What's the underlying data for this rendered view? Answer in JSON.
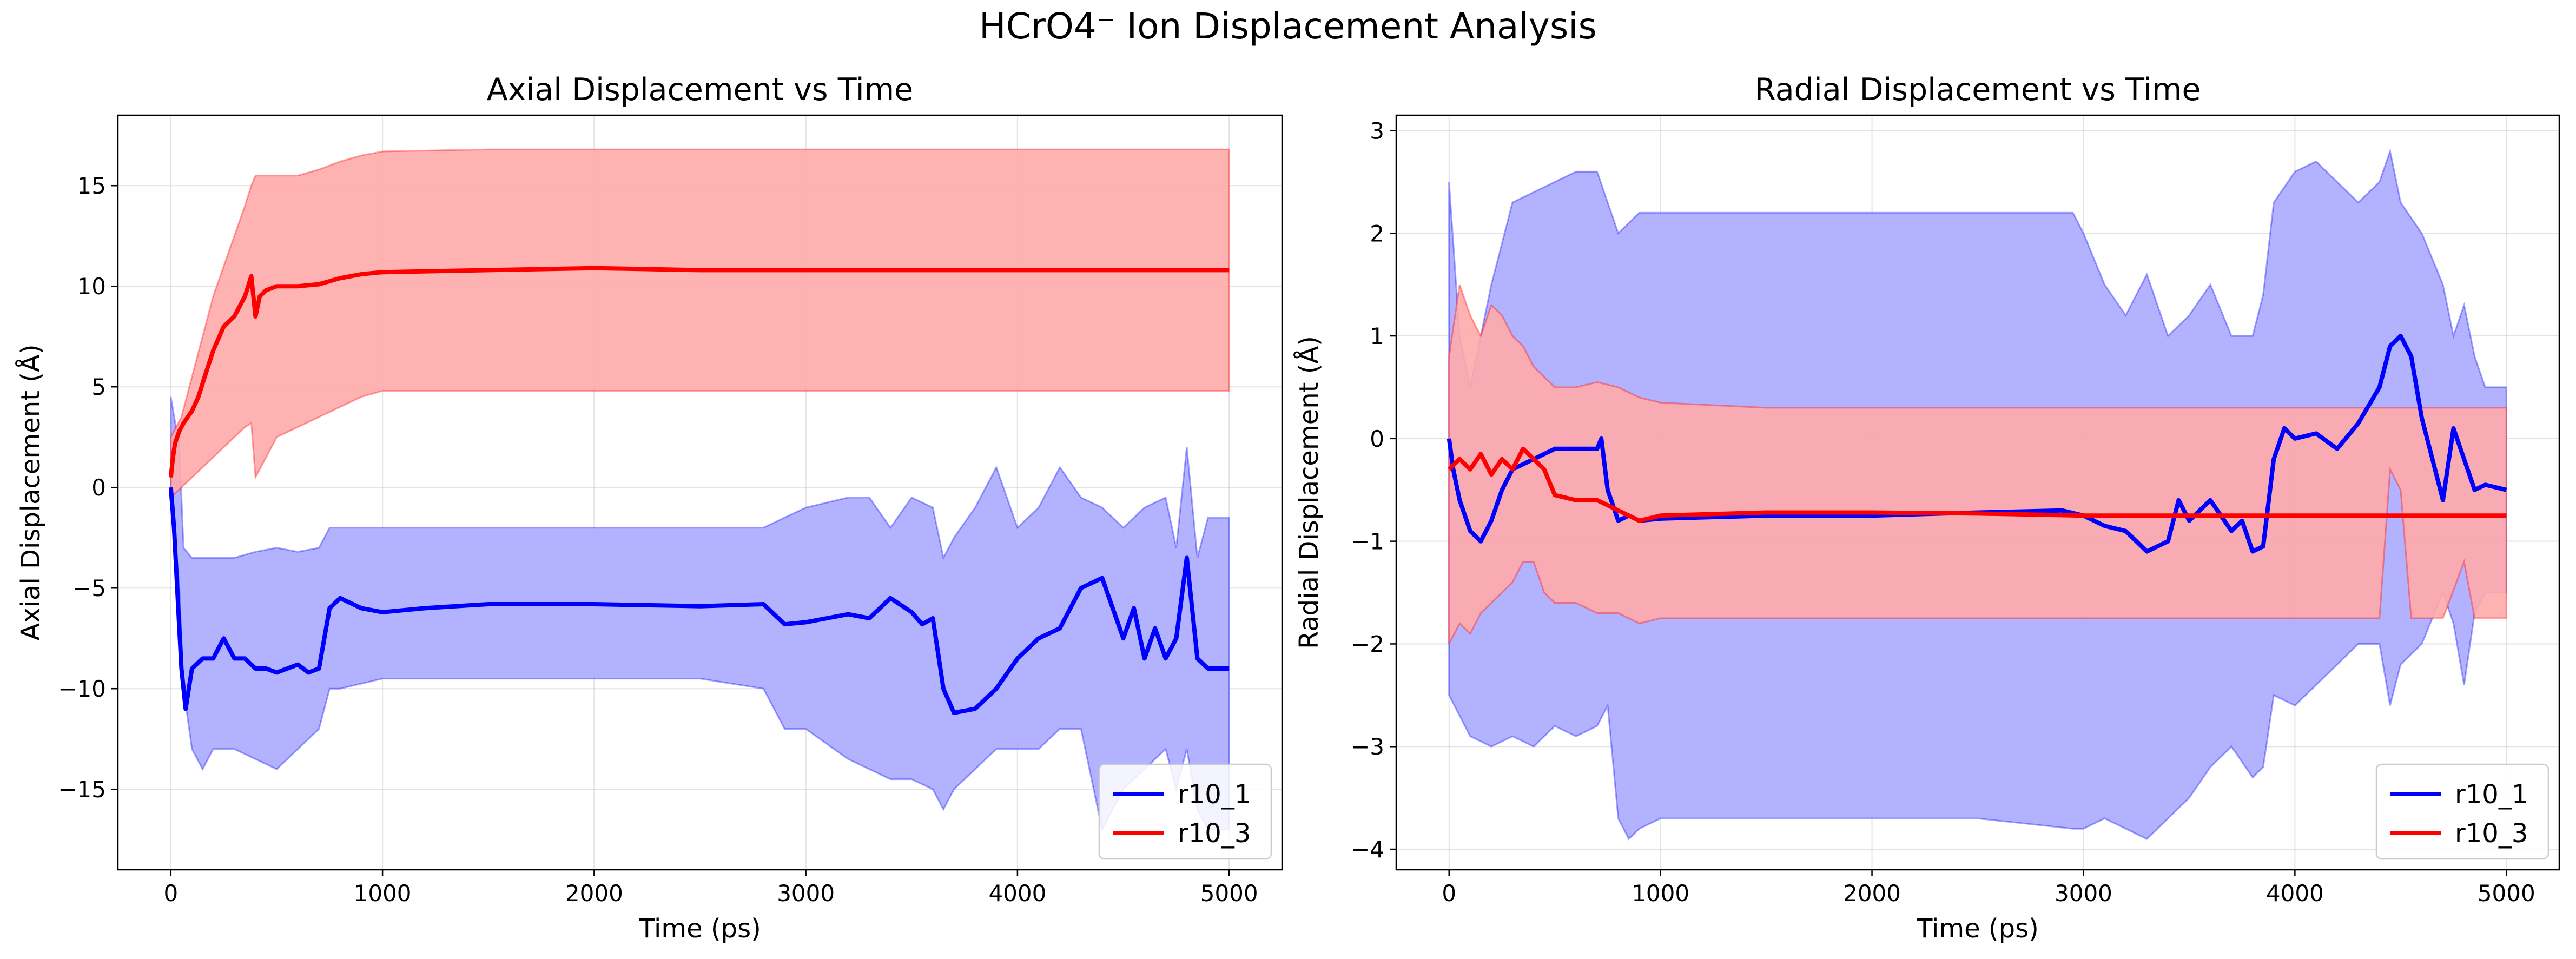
{
  "figure": {
    "title": "HCrO4⁻ Ion Displacement Analysis"
  },
  "colors": {
    "r10_1": "#0000ff",
    "r10_3": "#ff0000",
    "band_r10_1": "#aaaaff",
    "band_r10_3": "#ffaaaa"
  },
  "chart_data": [
    {
      "type": "line",
      "title": "Axial Displacement vs Time",
      "xlabel": "Time (ps)",
      "ylabel": "Axial Displacement (Å)",
      "xlim": [
        -250,
        5250
      ],
      "ylim": [
        -19,
        18.5
      ],
      "xticks": [
        0,
        1000,
        2000,
        3000,
        4000,
        5000
      ],
      "yticks": [
        -15,
        -10,
        -5,
        0,
        5,
        10,
        15
      ],
      "grid": true,
      "legend_position": "lower-right",
      "series": [
        {
          "name": "r10_1",
          "color": "#0000ff",
          "x": [
            0,
            15,
            30,
            50,
            70,
            100,
            150,
            200,
            250,
            300,
            350,
            400,
            450,
            500,
            550,
            600,
            650,
            700,
            750,
            800,
            900,
            1000,
            1200,
            1500,
            2000,
            2500,
            2800,
            2900,
            3000,
            3100,
            3200,
            3300,
            3400,
            3500,
            3550,
            3600,
            3650,
            3700,
            3800,
            3900,
            4000,
            4100,
            4200,
            4300,
            4400,
            4500,
            4550,
            4600,
            4650,
            4700,
            4750,
            4800,
            4850,
            4900,
            5000
          ],
          "values": [
            0,
            -2,
            -5,
            -9,
            -11,
            -9,
            -8.5,
            -8.5,
            -7.5,
            -8.5,
            -8.5,
            -9,
            -9,
            -9.2,
            -9,
            -8.8,
            -9.2,
            -9,
            -6,
            -5.5,
            -6,
            -6.2,
            -6,
            -5.8,
            -5.8,
            -5.9,
            -5.8,
            -6.8,
            -6.7,
            -6.5,
            -6.3,
            -6.5,
            -5.5,
            -6.2,
            -6.8,
            -6.5,
            -10,
            -11.2,
            -11,
            -10,
            -8.5,
            -7.5,
            -7,
            -5,
            -4.5,
            -7.5,
            -6,
            -8.5,
            -7,
            -8.5,
            -7.5,
            -3.5,
            -8.5,
            -9,
            -9
          ]
        },
        {
          "name": "r10_3",
          "color": "#ff0000",
          "x": [
            0,
            10,
            20,
            40,
            60,
            80,
            100,
            130,
            160,
            200,
            250,
            300,
            350,
            380,
            400,
            420,
            450,
            500,
            600,
            700,
            800,
            900,
            1000,
            1500,
            2000,
            2500,
            3000,
            3500,
            4000,
            4500,
            5000
          ],
          "values": [
            0.5,
            1.5,
            2.2,
            2.8,
            3.2,
            3.5,
            3.8,
            4.5,
            5.5,
            6.8,
            8,
            8.5,
            9.5,
            10.5,
            8.5,
            9.5,
            9.8,
            10.0,
            10.0,
            10.1,
            10.4,
            10.6,
            10.7,
            10.8,
            10.9,
            10.8,
            10.8,
            10.8,
            10.8,
            10.8,
            10.8
          ]
        }
      ],
      "bands": [
        {
          "series": "r10_1",
          "x": [
            0,
            40,
            60,
            100,
            150,
            200,
            300,
            400,
            500,
            600,
            700,
            750,
            800,
            1000,
            1500,
            2000,
            2500,
            2800,
            2900,
            3000,
            3200,
            3300,
            3400,
            3500,
            3600,
            3650,
            3700,
            3800,
            3900,
            4000,
            4100,
            4200,
            4300,
            4400,
            4500,
            4600,
            4700,
            4750,
            4800,
            4850,
            4900,
            5000
          ],
          "upper": [
            4.5,
            2,
            -3,
            -3.5,
            -3.5,
            -3.5,
            -3.5,
            -3.2,
            -3,
            -3.2,
            -3,
            -2,
            -2,
            -2,
            -2,
            -2,
            -2,
            -2,
            -1.5,
            -1,
            -0.5,
            -0.5,
            -2,
            -0.5,
            -1,
            -3.5,
            -2.5,
            -1,
            1,
            -2,
            -1,
            1,
            -0.5,
            -1,
            -2,
            -1,
            -0.5,
            -3,
            2,
            -3.5,
            -1.5,
            -1.5
          ],
          "lower": [
            0,
            -5,
            -10,
            -13,
            -14,
            -13,
            -13,
            -13.5,
            -14,
            -13,
            -12,
            -10,
            -10,
            -9.5,
            -9.5,
            -9.5,
            -9.5,
            -10,
            -12,
            -12,
            -13.5,
            -14,
            -14.5,
            -14.5,
            -15,
            -16,
            -15,
            -14,
            -13,
            -13,
            -13,
            -12,
            -12,
            -17,
            -15,
            -14,
            -13,
            -15,
            -13,
            -16,
            -17,
            -17
          ]
        },
        {
          "series": "r10_3",
          "x": [
            0,
            50,
            100,
            150,
            200,
            250,
            300,
            350,
            380,
            400,
            450,
            500,
            600,
            700,
            800,
            900,
            1000,
            1500,
            2000,
            2500,
            3000,
            3500,
            4000,
            4500,
            5000
          ],
          "upper": [
            2.5,
            3.5,
            5.5,
            7.5,
            9.5,
            11,
            12.5,
            14,
            15,
            15.5,
            15.5,
            15.5,
            15.5,
            15.8,
            16.2,
            16.5,
            16.7,
            16.8,
            16.8,
            16.8,
            16.8,
            16.8,
            16.8,
            16.8,
            16.8
          ],
          "lower": [
            -0.5,
            0,
            0.5,
            1,
            1.5,
            2,
            2.5,
            3.0,
            3.2,
            0.5,
            1.5,
            2.5,
            3.0,
            3.5,
            4.0,
            4.5,
            4.8,
            4.8,
            4.8,
            4.8,
            4.8,
            4.8,
            4.8,
            4.8,
            4.8
          ]
        }
      ]
    },
    {
      "type": "line",
      "title": "Radial Displacement vs Time",
      "xlabel": "Time (ps)",
      "ylabel": "Radial Displacement (Å)",
      "xlim": [
        -250,
        5250
      ],
      "ylim": [
        -4.2,
        3.15
      ],
      "xticks": [
        0,
        1000,
        2000,
        3000,
        4000,
        5000
      ],
      "yticks": [
        -4,
        -3,
        -2,
        -1,
        0,
        1,
        2,
        3
      ],
      "grid": true,
      "legend_position": "lower-right",
      "series": [
        {
          "name": "r10_1",
          "color": "#0000ff",
          "x": [
            0,
            20,
            50,
            100,
            150,
            200,
            250,
            300,
            400,
            500,
            600,
            700,
            720,
            750,
            800,
            850,
            900,
            1000,
            1500,
            2000,
            2500,
            2900,
            3000,
            3100,
            3200,
            3300,
            3400,
            3450,
            3500,
            3600,
            3700,
            3750,
            3800,
            3850,
            3900,
            3950,
            4000,
            4100,
            4200,
            4300,
            4400,
            4450,
            4500,
            4550,
            4600,
            4650,
            4700,
            4750,
            4800,
            4850,
            4900,
            5000
          ],
          "values": [
            0,
            -0.3,
            -0.6,
            -0.9,
            -1.0,
            -0.8,
            -0.5,
            -0.3,
            -0.2,
            -0.1,
            -0.1,
            -0.1,
            0,
            -0.5,
            -0.8,
            -0.75,
            -0.8,
            -0.78,
            -0.75,
            -0.75,
            -0.72,
            -0.7,
            -0.75,
            -0.85,
            -0.9,
            -1.1,
            -1.0,
            -0.6,
            -0.8,
            -0.6,
            -0.9,
            -0.8,
            -1.1,
            -1.05,
            -0.2,
            0.1,
            0.0,
            0.05,
            -0.1,
            0.15,
            0.5,
            0.9,
            1.0,
            0.8,
            0.2,
            -0.2,
            -0.6,
            0.1,
            -0.2,
            -0.5,
            -0.45,
            -0.5
          ]
        },
        {
          "name": "r10_3",
          "color": "#ff0000",
          "x": [
            0,
            50,
            100,
            150,
            200,
            250,
            300,
            350,
            400,
            450,
            500,
            600,
            700,
            800,
            900,
            1000,
            1500,
            2000,
            2500,
            3000,
            3500,
            4000,
            4500,
            5000
          ],
          "values": [
            -0.3,
            -0.2,
            -0.3,
            -0.15,
            -0.35,
            -0.2,
            -0.3,
            -0.1,
            -0.2,
            -0.3,
            -0.55,
            -0.6,
            -0.6,
            -0.7,
            -0.8,
            -0.75,
            -0.72,
            -0.72,
            -0.73,
            -0.75,
            -0.75,
            -0.75,
            -0.75,
            -0.75
          ]
        }
      ],
      "bands": [
        {
          "series": "r10_1",
          "x": [
            0,
            50,
            100,
            200,
            300,
            400,
            500,
            600,
            700,
            750,
            800,
            850,
            900,
            1000,
            1500,
            2000,
            2500,
            2950,
            3000,
            3100,
            3200,
            3300,
            3400,
            3500,
            3600,
            3700,
            3800,
            3850,
            3900,
            4000,
            4100,
            4200,
            4300,
            4400,
            4450,
            4500,
            4600,
            4700,
            4750,
            4800,
            4850,
            4900,
            5000
          ],
          "upper": [
            2.5,
            1.0,
            0.5,
            1.5,
            2.3,
            2.4,
            2.5,
            2.6,
            2.6,
            2.3,
            2.0,
            2.1,
            2.2,
            2.2,
            2.2,
            2.2,
            2.2,
            2.2,
            2.0,
            1.5,
            1.2,
            1.6,
            1.0,
            1.2,
            1.5,
            1.0,
            1.0,
            1.4,
            2.3,
            2.6,
            2.7,
            2.5,
            2.3,
            2.5,
            2.8,
            2.3,
            2.0,
            1.5,
            1.0,
            1.3,
            0.8,
            0.5,
            0.5
          ],
          "lower": [
            -2.5,
            -2.7,
            -2.9,
            -3.0,
            -2.9,
            -3.0,
            -2.8,
            -2.9,
            -2.8,
            -2.6,
            -3.7,
            -3.9,
            -3.8,
            -3.7,
            -3.7,
            -3.7,
            -3.7,
            -3.8,
            -3.8,
            -3.7,
            -3.8,
            -3.9,
            -3.7,
            -3.5,
            -3.2,
            -3.0,
            -3.3,
            -3.2,
            -2.5,
            -2.6,
            -2.4,
            -2.2,
            -2.0,
            -2.0,
            -2.6,
            -2.2,
            -2.0,
            -1.5,
            -1.8,
            -2.4,
            -1.7,
            -1.5,
            -1.5
          ]
        },
        {
          "series": "r10_3",
          "x": [
            0,
            50,
            100,
            150,
            200,
            250,
            300,
            350,
            400,
            450,
            500,
            600,
            700,
            800,
            900,
            1000,
            1500,
            2000,
            2500,
            3000,
            3500,
            4000,
            4400,
            4450,
            4500,
            4550,
            4600,
            4700,
            4800,
            4850,
            4900,
            5000
          ],
          "upper": [
            0.8,
            1.5,
            1.2,
            1.0,
            1.3,
            1.2,
            1.0,
            0.9,
            0.7,
            0.6,
            0.5,
            0.5,
            0.55,
            0.5,
            0.4,
            0.35,
            0.3,
            0.3,
            0.3,
            0.3,
            0.3,
            0.3,
            0.3,
            0.3,
            0.3,
            0.3,
            0.3,
            0.3,
            0.3,
            0.3,
            0.3,
            0.3
          ],
          "lower": [
            -2.0,
            -1.8,
            -1.9,
            -1.7,
            -1.6,
            -1.5,
            -1.4,
            -1.2,
            -1.2,
            -1.5,
            -1.6,
            -1.6,
            -1.7,
            -1.7,
            -1.8,
            -1.75,
            -1.75,
            -1.75,
            -1.75,
            -1.75,
            -1.75,
            -1.75,
            -1.75,
            -0.3,
            -0.5,
            -1.75,
            -1.75,
            -1.75,
            -1.2,
            -1.75,
            -1.75,
            -1.75
          ]
        }
      ]
    }
  ]
}
